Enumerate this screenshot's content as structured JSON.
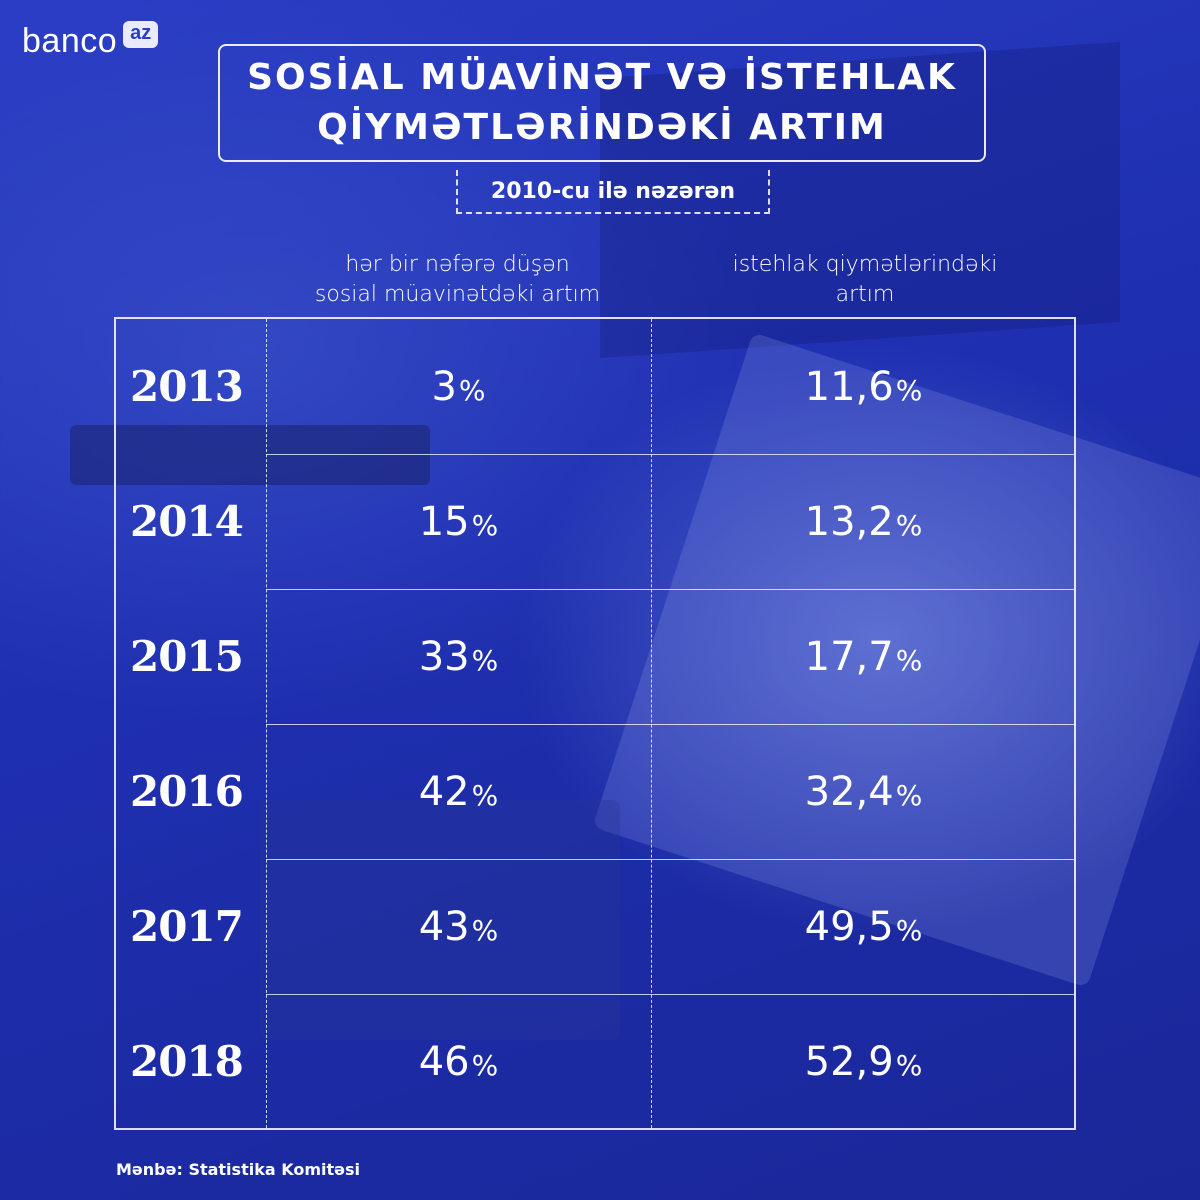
{
  "brand": {
    "name": "banco",
    "badge": "az"
  },
  "title": {
    "line1": "SOSİAL MÜAVİNƏT VƏ İSTEHLAK",
    "line2": "QİYMƏTLƏRİNDƏKİ ARTIM"
  },
  "subtitle": "2010-cu ilə nəzərən",
  "headers": {
    "col1_line1": "hər bir nəfərə düşən",
    "col1_line2": "sosial müavinətdəki artım",
    "col2_line1": "istehlak qiymətlərindəki",
    "col2_line2": "artım"
  },
  "rows": [
    {
      "year": "2013",
      "c1": "3",
      "c2": "11,6"
    },
    {
      "year": "2014",
      "c1": "15",
      "c2": "13,2"
    },
    {
      "year": "2015",
      "c1": "33",
      "c2": "17,7"
    },
    {
      "year": "2016",
      "c1": "42",
      "c2": "32,4"
    },
    {
      "year": "2017",
      "c1": "43",
      "c2": "49,5"
    },
    {
      "year": "2018",
      "c1": "46",
      "c2": "52,9"
    }
  ],
  "percent_sign": "%",
  "source": "Mənbə: Statistika Komitəsi",
  "chart_data": {
    "type": "table",
    "title": "SOSİAL MÜAVİNƏT VƏ İSTEHLAK QİYMƏTLƏRİNDƏKİ ARTIM",
    "subtitle": "2010-cu ilə nəzərən",
    "columns": [
      "hər bir nəfərə düşən sosial müavinətdəki artım",
      "istehlak qiymətlərindəki artım"
    ],
    "categories": [
      "2013",
      "2014",
      "2015",
      "2016",
      "2017",
      "2018"
    ],
    "series": [
      {
        "name": "hər bir nəfərə düşən sosial müavinətdəki artım",
        "values": [
          3,
          15,
          33,
          42,
          43,
          46
        ]
      },
      {
        "name": "istehlak qiymətlərindəki artım",
        "values": [
          11.6,
          13.2,
          17.7,
          32.4,
          49.5,
          52.9
        ]
      }
    ],
    "unit": "%"
  },
  "colors": {
    "background": "#1e2fb0",
    "text": "#ffffff"
  }
}
